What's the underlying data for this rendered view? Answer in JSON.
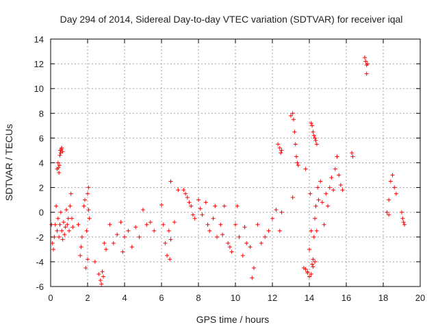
{
  "chart_data": {
    "type": "scatter",
    "title": "Day 294 of 2014, Sidereal Day-to-day VTEC variation (SDTVAR) for receiver iqal",
    "xlabel": "GPS time / hours",
    "ylabel": "SDTVAR / TECUs",
    "xlim": [
      0,
      20
    ],
    "ylim": [
      -6,
      14
    ],
    "xticks": [
      "0",
      "2",
      "4",
      "6",
      "8",
      "10",
      "12",
      "14",
      "16",
      "18",
      "20"
    ],
    "yticks": [
      "-6",
      "-4",
      "-2",
      "0",
      "2",
      "4",
      "6",
      "8",
      "10",
      "12",
      "14"
    ],
    "grid": true,
    "marker": "+",
    "color": "#ff0000",
    "series": [
      {
        "name": "SDTVAR",
        "x": [
          0.05,
          0.1,
          0.15,
          0.2,
          0.25,
          0.3,
          0.35,
          0.4,
          0.45,
          0.5,
          0.55,
          0.6,
          0.65,
          0.7,
          0.75,
          0.8,
          0.85,
          0.9,
          0.95,
          1.0,
          1.05,
          1.1,
          1.15,
          1.2,
          0.35,
          0.4,
          0.45,
          0.48,
          0.52,
          0.55,
          0.6,
          0.65,
          0.42,
          0.5,
          0.58,
          1.5,
          1.6,
          1.7,
          1.8,
          1.9,
          2.0,
          2.05,
          2.1,
          1.65,
          1.85,
          1.95,
          2.0,
          2.05,
          2.4,
          2.6,
          2.7,
          2.8,
          2.9,
          3.0,
          3.2,
          3.4,
          3.6,
          3.8,
          3.9,
          4.0,
          4.2,
          4.4,
          4.6,
          4.8,
          5.0,
          5.2,
          5.4,
          5.6,
          2.75,
          2.85,
          6.0,
          6.1,
          6.2,
          6.3,
          6.4,
          6.5,
          6.7,
          6.9,
          6.45,
          6.5,
          7.2,
          7.4,
          7.6,
          7.8,
          8.0,
          8.2,
          8.4,
          8.6,
          8.8,
          9.0,
          9.2,
          9.4,
          9.6,
          9.8,
          10.0,
          10.2,
          10.4,
          10.6,
          10.8,
          11.0,
          11.2,
          11.4,
          11.6,
          11.8,
          12.0,
          12.2,
          12.4,
          12.5,
          7.3,
          7.5,
          7.7,
          8.1,
          8.5,
          8.9,
          9.3,
          9.7,
          10.1,
          10.5,
          10.9,
          12.3,
          12.4,
          12.45,
          12.5,
          13.0,
          13.1,
          13.15,
          13.2,
          13.25,
          13.3,
          13.35,
          13.4,
          13.1,
          13.7,
          13.8,
          13.9,
          14.0,
          14.05,
          14.1,
          14.15,
          14.2,
          14.25,
          14.3,
          14.35,
          14.4,
          14.45,
          14.5,
          14.6,
          14.7,
          14.8,
          14.9,
          15.0,
          15.1,
          15.2,
          15.3,
          15.4,
          15.5,
          15.6,
          15.7,
          15.8,
          14.1,
          14.15,
          14.2,
          14.25,
          14.3,
          14.35,
          14.4,
          13.8,
          13.9,
          14.0,
          14.1,
          14.2,
          14.3,
          16.3,
          16.35,
          17.0,
          17.05,
          17.1,
          17.15,
          17.1,
          18.2,
          18.3,
          18.4,
          18.5,
          18.6,
          18.7,
          18.3,
          19.0,
          19.05,
          19.1,
          19.15
        ],
        "y": [
          -1.0,
          -2.5,
          -3.0,
          -2.0,
          -1.0,
          0.5,
          -1.5,
          -0.5,
          -2.0,
          -1.0,
          0.0,
          -1.5,
          -2.2,
          -0.8,
          -1.8,
          -1.2,
          0.2,
          -1.0,
          -0.5,
          -1.5,
          0.5,
          1.5,
          -0.5,
          -1.2,
          3.5,
          4.0,
          3.2,
          3.8,
          5.0,
          4.8,
          5.2,
          4.9,
          3.6,
          4.6,
          5.1,
          -1.0,
          -3.5,
          -2.0,
          0.5,
          -4.5,
          1.5,
          2.0,
          -0.5,
          -2.8,
          1.0,
          -1.5,
          -3.8,
          0.2,
          -4.0,
          -5.0,
          -5.5,
          -4.8,
          -2.5,
          -3.0,
          -1.0,
          -2.5,
          -1.8,
          -0.8,
          -3.2,
          -2.0,
          -1.5,
          -2.8,
          -1.2,
          -2.0,
          0.2,
          -1.0,
          -0.8,
          -1.5,
          -5.8,
          -5.2,
          0.6,
          -1.0,
          -2.5,
          -3.5,
          -1.5,
          2.5,
          -0.8,
          1.8,
          -3.8,
          -2.2,
          1.8,
          1.2,
          0.5,
          -0.5,
          1.0,
          -0.2,
          0.8,
          -1.5,
          -0.5,
          -2.0,
          -1.0,
          0.5,
          -2.5,
          -3.2,
          -1.0,
          -2.0,
          -3.5,
          -2.5,
          -2.8,
          -4.5,
          -1.0,
          -2.5,
          -2.0,
          -1.5,
          -0.5,
          0.2,
          -1.5,
          0.0,
          1.5,
          0.8,
          -0.2,
          0.3,
          -1.0,
          0.5,
          -1.8,
          -2.8,
          0.5,
          -1.2,
          -5.3,
          5.5,
          5.2,
          4.8,
          5.0,
          7.8,
          8.0,
          7.5,
          6.5,
          5.5,
          4.5,
          4.0,
          3.8,
          1.2,
          -4.5,
          3.5,
          -4.8,
          -3.0,
          1.5,
          -1.5,
          -4.2,
          -3.8,
          -2.0,
          -0.5,
          0.5,
          -1.5,
          2.0,
          1.0,
          2.5,
          0.8,
          -1.0,
          1.5,
          0.5,
          2.0,
          2.8,
          1.8,
          3.5,
          4.5,
          3.0,
          2.2,
          1.8,
          7.2,
          7.0,
          6.5,
          6.2,
          6.0,
          5.8,
          5.5,
          -4.6,
          -4.9,
          -5.2,
          -5.0,
          -4.4,
          -4.0,
          4.8,
          4.5,
          12.5,
          12.2,
          11.9,
          12.0,
          11.2,
          0.0,
          1.0,
          2.5,
          3.0,
          2.0,
          1.5,
          -0.2,
          0.0,
          -0.5,
          -0.8,
          -1.0
        ]
      }
    ]
  }
}
